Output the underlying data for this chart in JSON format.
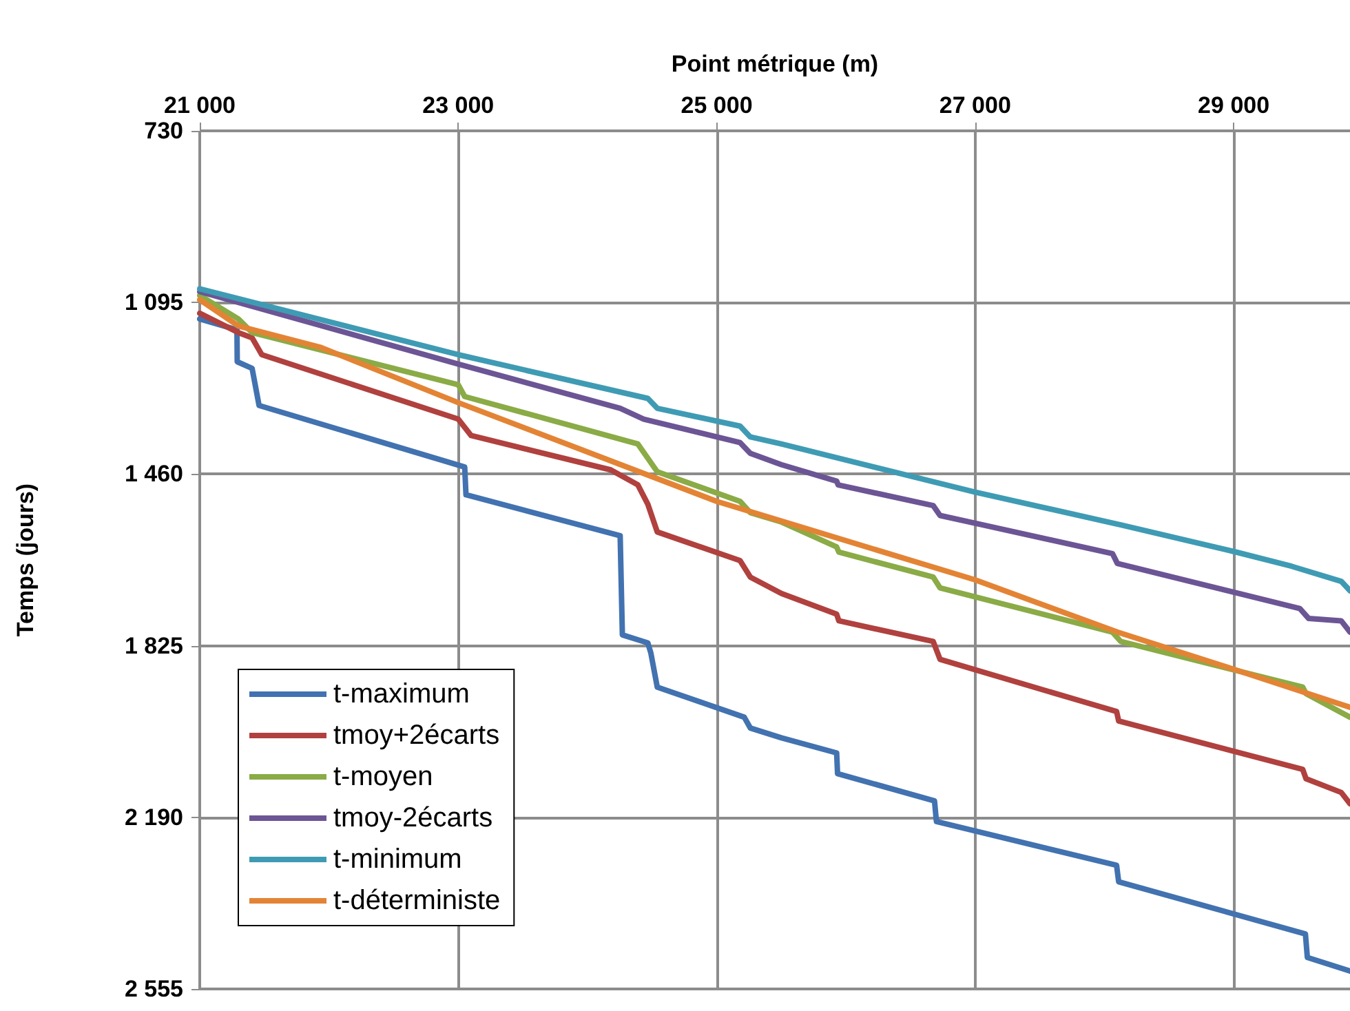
{
  "chart_data": {
    "type": "line",
    "xlabel": "Point métrique (m)",
    "ylabel": "Temps (jours)",
    "xlim": [
      21000,
      29900
    ],
    "xticks": [
      {
        "value": 21000,
        "label": "21 000"
      },
      {
        "value": 23000,
        "label": "23 000"
      },
      {
        "value": 25000,
        "label": "25 000"
      },
      {
        "value": 27000,
        "label": "27 000"
      },
      {
        "value": 29000,
        "label": "29 000"
      }
    ],
    "ylim": [
      2555,
      730
    ],
    "yticks": [
      730,
      {
        "value": 1095,
        "label": "1 095"
      },
      {
        "value": 1460,
        "label": "1 460"
      },
      {
        "value": 1825,
        "label": "1 825"
      },
      {
        "value": 2190,
        "label": "2 190"
      },
      {
        "value": 2555,
        "label": "2 555"
      }
    ],
    "grid": true,
    "legend": "bottom left",
    "line_style": "solid",
    "series": [
      {
        "name": "t-maximum",
        "color": "#4272b0",
        "x": [
          21000,
          21288,
          21290,
          21405,
          21459,
          23050,
          23060,
          24253,
          24270,
          24467,
          24490,
          24540,
          25213,
          25260,
          25501,
          25928,
          25935,
          26685,
          26700,
          28094,
          28110,
          29555,
          29570,
          29900
        ],
        "values": [
          1130,
          1153,
          1221,
          1235,
          1314,
          1445,
          1504,
          1591,
          1802,
          1819,
          1840,
          1913,
          1977,
          2000,
          2021,
          2053,
          2097,
          2155,
          2199,
          2292,
          2327,
          2438,
          2488,
          2517
        ]
      },
      {
        "name": "tmoy+2écarts",
        "color": "#b0413e",
        "x": [
          21000,
          21299,
          21405,
          21480,
          23000,
          23100,
          24180,
          24390,
          24467,
          24540,
          25181,
          25260,
          25501,
          25928,
          25945,
          26675,
          26728,
          28094,
          28110,
          29534,
          29560,
          29832,
          29900
        ],
        "values": [
          1118,
          1159,
          1170,
          1206,
          1343,
          1378,
          1451,
          1483,
          1524,
          1583,
          1644,
          1679,
          1714,
          1758,
          1772,
          1816,
          1854,
          1965,
          1985,
          2088,
          2108,
          2137,
          2161
        ]
      },
      {
        "name": "t-moyen",
        "color": "#8aab46",
        "x": [
          21000,
          21299,
          21405,
          23000,
          23050,
          24390,
          24540,
          25181,
          25260,
          25501,
          25928,
          25945,
          26675,
          26728,
          28062,
          28126,
          29534,
          29560,
          29900
        ],
        "values": [
          1080,
          1130,
          1159,
          1270,
          1295,
          1396,
          1455,
          1518,
          1542,
          1562,
          1615,
          1626,
          1679,
          1702,
          1796,
          1816,
          1913,
          1927,
          1977
        ]
      },
      {
        "name": "tmoy-2écarts",
        "color": "#6c5595",
        "x": [
          21000,
          23000,
          24253,
          24435,
          25181,
          25260,
          25501,
          25928,
          25940,
          26675,
          26728,
          28062,
          28100,
          29512,
          29580,
          29832,
          29900
        ],
        "values": [
          1072,
          1226,
          1320,
          1343,
          1393,
          1416,
          1440,
          1475,
          1483,
          1527,
          1548,
          1629,
          1650,
          1746,
          1767,
          1772,
          1796
        ]
      },
      {
        "name": "t-minimum",
        "color": "#3f9bb4",
        "x": [
          21000,
          23000,
          24467,
          24540,
          25181,
          25260,
          25501,
          26995,
          28126,
          29021,
          29448,
          29832,
          29900
        ],
        "values": [
          1066,
          1206,
          1299,
          1320,
          1358,
          1381,
          1396,
          1498,
          1568,
          1626,
          1656,
          1688,
          1708
        ]
      },
      {
        "name": "t-déterministe",
        "color": "#e38435",
        "x": [
          21000,
          21300,
          21940,
          23000,
          25000,
          27000,
          28100,
          29000,
          29900
        ],
        "values": [
          1089,
          1145,
          1191,
          1308,
          1518,
          1685,
          1796,
          1875,
          1956
        ]
      }
    ]
  }
}
